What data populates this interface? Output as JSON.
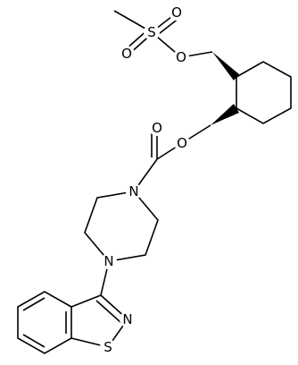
{
  "atoms": [
    {
      "label": "S"
    },
    {
      "label": "O"
    },
    {
      "label": "O"
    },
    {
      "label": "O"
    },
    {
      "label": "O"
    },
    {
      "label": "O"
    },
    {
      "label": "N"
    },
    {
      "label": "N"
    },
    {
      "label": "N"
    },
    {
      "label": "S"
    }
  ]
}
